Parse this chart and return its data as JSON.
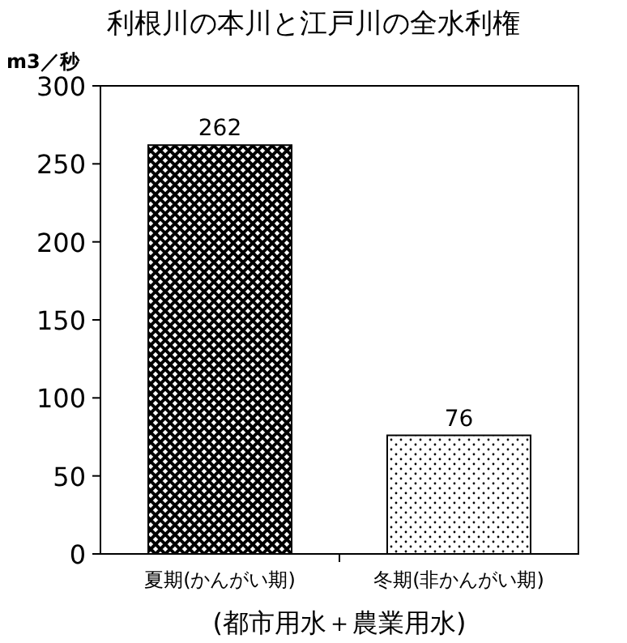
{
  "chart_data": {
    "type": "bar",
    "title": "利根川の本川と江戸川の全水利権",
    "ylabel": "m3／秒",
    "xlabel": "(都市用水＋農業用水)",
    "categories": [
      "夏期(かんがい期)",
      "冬期(非かんがい期)"
    ],
    "values": [
      262,
      76
    ],
    "colors": [
      "#000000",
      "#000000"
    ],
    "ylim": [
      0,
      300
    ],
    "yticks": [
      0,
      50,
      100,
      150,
      200,
      250,
      300
    ],
    "data_labels": true,
    "grid": false
  }
}
